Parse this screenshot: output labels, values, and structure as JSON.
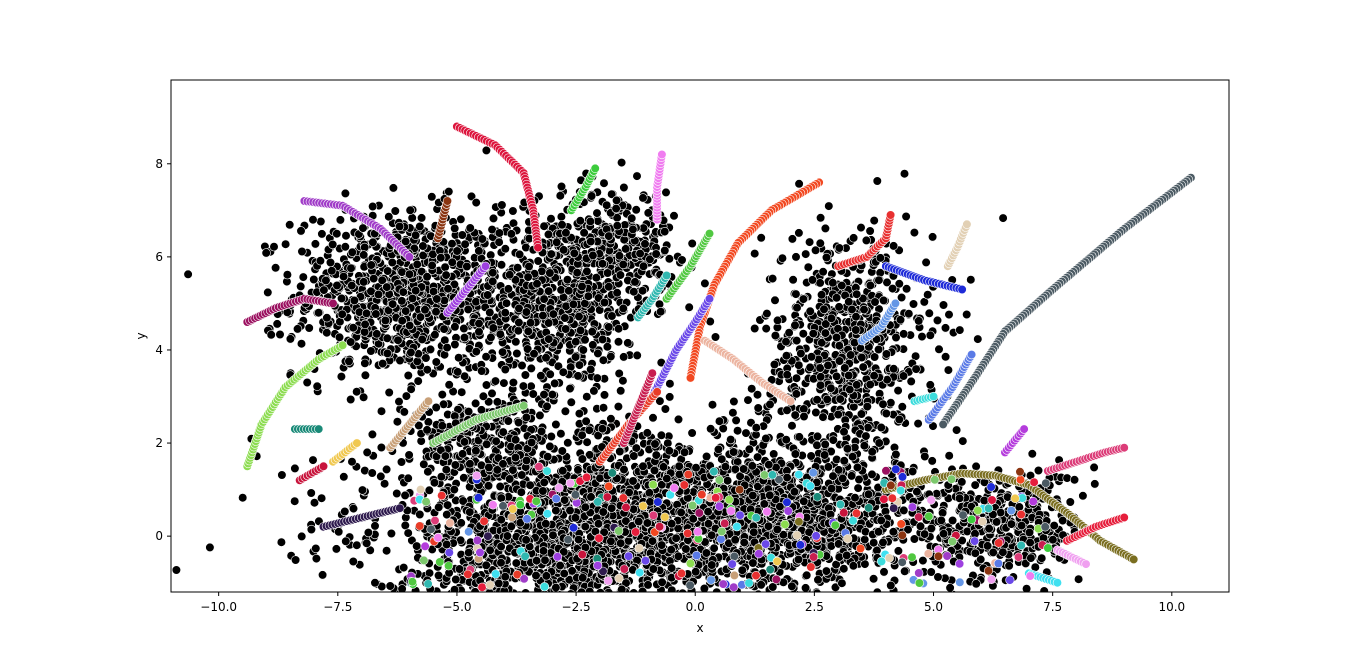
{
  "chart_data": {
    "type": "scatter",
    "title": "",
    "xlabel": "x",
    "ylabel": "y",
    "xlim": [
      -11.0,
      11.2
    ],
    "ylim": [
      -1.2,
      9.8
    ],
    "xticks": [
      -10.0,
      -7.5,
      -5.0,
      -2.5,
      0.0,
      2.5,
      5.0,
      7.5,
      10.0
    ],
    "xtick_labels": [
      "−10.0",
      "−7.5",
      "−5.0",
      "−2.5",
      "0.0",
      "2.5",
      "5.0",
      "7.5",
      "10.0"
    ],
    "yticks": [
      0,
      2,
      4,
      6,
      8
    ],
    "ytick_labels": [
      "0",
      "2",
      "4",
      "6",
      "8"
    ],
    "grid": false,
    "legend": "none",
    "marker_edge_color": "#ffffff",
    "background_cluster_color": "#000000",
    "clusters": [
      {
        "cx": -6.2,
        "cy": 5.2,
        "sx": 1.1,
        "sy": 0.9,
        "n": 900
      },
      {
        "cx": -3.0,
        "cy": 5.0,
        "sx": 1.0,
        "sy": 1.0,
        "n": 700
      },
      {
        "cx": -1.6,
        "cy": 6.3,
        "sx": 0.6,
        "sy": 0.6,
        "n": 250
      },
      {
        "cx": 3.2,
        "cy": 4.0,
        "sx": 0.9,
        "sy": 1.3,
        "n": 700
      },
      {
        "cx": -1.5,
        "cy": 0.6,
        "sx": 2.6,
        "sy": 0.9,
        "n": 1500
      },
      {
        "cx": 1.6,
        "cy": 0.3,
        "sx": 2.0,
        "sy": 0.8,
        "n": 1100
      },
      {
        "cx": -3.5,
        "cy": -0.5,
        "sx": 1.6,
        "sy": 0.5,
        "n": 500
      },
      {
        "cx": 6.5,
        "cy": 0.2,
        "sx": 0.8,
        "sy": 0.6,
        "n": 350
      },
      {
        "cx": -4.5,
        "cy": 2.0,
        "sx": 0.8,
        "sy": 0.6,
        "n": 250
      }
    ],
    "series": [
      {
        "color": "#dc143c",
        "x": [
          -5.0,
          -4.2,
          -3.6,
          -3.4,
          -3.3
        ],
        "y": [
          8.8,
          8.4,
          7.8,
          7.0,
          6.2
        ]
      },
      {
        "color": "#f24820",
        "x": [
          2.6,
          1.6,
          0.9,
          0.4,
          0.1,
          -0.1
        ],
        "y": [
          7.6,
          7.0,
          6.3,
          5.4,
          4.5,
          3.4
        ]
      },
      {
        "color": "#4b5a63",
        "x": [
          10.4,
          9.0,
          7.5,
          6.5,
          5.8,
          5.2
        ],
        "y": [
          7.7,
          6.6,
          5.3,
          4.4,
          3.3,
          2.4
        ]
      },
      {
        "color": "#a03cc8",
        "x": [
          -8.2,
          -7.4,
          -6.6,
          -6.0
        ],
        "y": [
          7.2,
          7.1,
          6.6,
          6.0
        ]
      },
      {
        "color": "#9b1060",
        "x": [
          -9.4,
          -8.8,
          -8.2,
          -7.6
        ],
        "y": [
          4.6,
          4.9,
          5.1,
          5.0
        ]
      },
      {
        "color": "#8cdc50",
        "x": [
          -9.4,
          -9.1,
          -8.6,
          -7.9,
          -7.4
        ],
        "y": [
          1.5,
          2.4,
          3.2,
          3.8,
          4.1
        ]
      },
      {
        "color": "#1e2bd8",
        "x": [
          4.0,
          4.8,
          5.6
        ],
        "y": [
          5.8,
          5.5,
          5.3
        ]
      },
      {
        "color": "#7a6e20",
        "x": [
          4.0,
          4.8,
          5.6,
          6.3,
          7.0,
          7.8,
          8.5,
          9.2
        ],
        "y": [
          1.0,
          1.2,
          1.35,
          1.3,
          1.1,
          0.5,
          -0.1,
          -0.5
        ]
      },
      {
        "color": "#e83030",
        "x": [
          3.0,
          3.6,
          4.0,
          4.1
        ],
        "y": [
          5.8,
          6.0,
          6.4,
          6.9
        ]
      },
      {
        "color": "#dc3c78",
        "x": [
          7.4,
          8.0,
          8.6,
          9.0
        ],
        "y": [
          1.4,
          1.6,
          1.8,
          1.9
        ]
      },
      {
        "color": "#e61e3c",
        "x": [
          7.8,
          8.4,
          9.0
        ],
        "y": [
          -0.1,
          0.2,
          0.4
        ]
      },
      {
        "color": "#3ccc3c",
        "x": [
          -2.6,
          -2.3,
          -2.1
        ],
        "y": [
          7.0,
          7.5,
          7.9
        ]
      },
      {
        "color": "#f07cf0",
        "x": [
          -0.8,
          -0.8,
          -0.7
        ],
        "y": [
          6.8,
          7.5,
          8.2
        ]
      },
      {
        "color": "#6496e6",
        "x": [
          3.5,
          3.9,
          4.2
        ],
        "y": [
          4.2,
          4.5,
          5.0
        ]
      },
      {
        "color": "#6a48e8",
        "x": [
          -0.9,
          -0.4,
          0.0,
          0.3
        ],
        "y": [
          3.0,
          4.0,
          4.6,
          5.1
        ]
      },
      {
        "color": "#50c840",
        "x": [
          -0.6,
          -0.1,
          0.3
        ],
        "y": [
          5.1,
          5.8,
          6.5
        ]
      },
      {
        "color": "#ecb4a0",
        "x": [
          0.2,
          0.8,
          1.4,
          2.0
        ],
        "y": [
          4.2,
          3.8,
          3.3,
          2.9
        ]
      },
      {
        "color": "#9e40e0",
        "x": [
          -5.2,
          -4.8,
          -4.4
        ],
        "y": [
          4.8,
          5.3,
          5.8
        ]
      },
      {
        "color": "#7cc86c",
        "x": [
          -5.5,
          -4.6,
          -3.6
        ],
        "y": [
          2.0,
          2.5,
          2.8
        ]
      },
      {
        "color": "#2e1a4e",
        "x": [
          -7.8,
          -7.0,
          -6.2
        ],
        "y": [
          0.2,
          0.4,
          0.6
        ]
      },
      {
        "color": "#e2d0b4",
        "x": [
          5.3,
          5.5,
          5.7
        ],
        "y": [
          5.8,
          6.2,
          6.7
        ]
      },
      {
        "color": "#8a3410",
        "x": [
          -5.4,
          -5.3,
          -5.2
        ],
        "y": [
          6.4,
          6.8,
          7.2
        ]
      },
      {
        "color": "#3cdcdc",
        "x": [
          4.6,
          5.0
        ],
        "y": [
          2.9,
          3.0
        ]
      },
      {
        "color": "#1a8a78",
        "x": [
          -8.4,
          -7.9
        ],
        "y": [
          2.3,
          2.3
        ]
      },
      {
        "color": "#f0c850",
        "x": [
          -7.6,
          -7.1
        ],
        "y": [
          1.6,
          2.0
        ]
      },
      {
        "color": "#c8143c",
        "x": [
          -8.3,
          -7.8
        ],
        "y": [
          1.2,
          1.5
        ]
      },
      {
        "color": "#b43cdc",
        "x": [
          6.5,
          6.9
        ],
        "y": [
          1.8,
          2.3
        ]
      },
      {
        "color": "#f0a0f0",
        "x": [
          7.6,
          8.2
        ],
        "y": [
          -0.3,
          -0.6
        ]
      },
      {
        "color": "#40e0f0",
        "x": [
          7.0,
          7.6
        ],
        "y": [
          -0.8,
          -1.0
        ]
      },
      {
        "color": "#e83c28",
        "x": [
          -2.0,
          -1.4,
          -0.8
        ],
        "y": [
          1.6,
          2.4,
          3.1
        ]
      },
      {
        "color": "#c8a078",
        "x": [
          -6.4,
          -6.0,
          -5.6
        ],
        "y": [
          1.9,
          2.4,
          2.9
        ]
      },
      {
        "color": "#5a7ae6",
        "x": [
          4.9,
          5.4,
          5.8
        ],
        "y": [
          2.5,
          3.2,
          3.9
        ]
      },
      {
        "color": "#30b8b0",
        "x": [
          -1.2,
          -0.9,
          -0.6
        ],
        "y": [
          4.7,
          5.1,
          5.6
        ]
      },
      {
        "color": "#c81e50",
        "x": [
          -1.5,
          -1.1,
          -0.9
        ],
        "y": [
          2.0,
          3.0,
          3.5
        ]
      }
    ]
  }
}
